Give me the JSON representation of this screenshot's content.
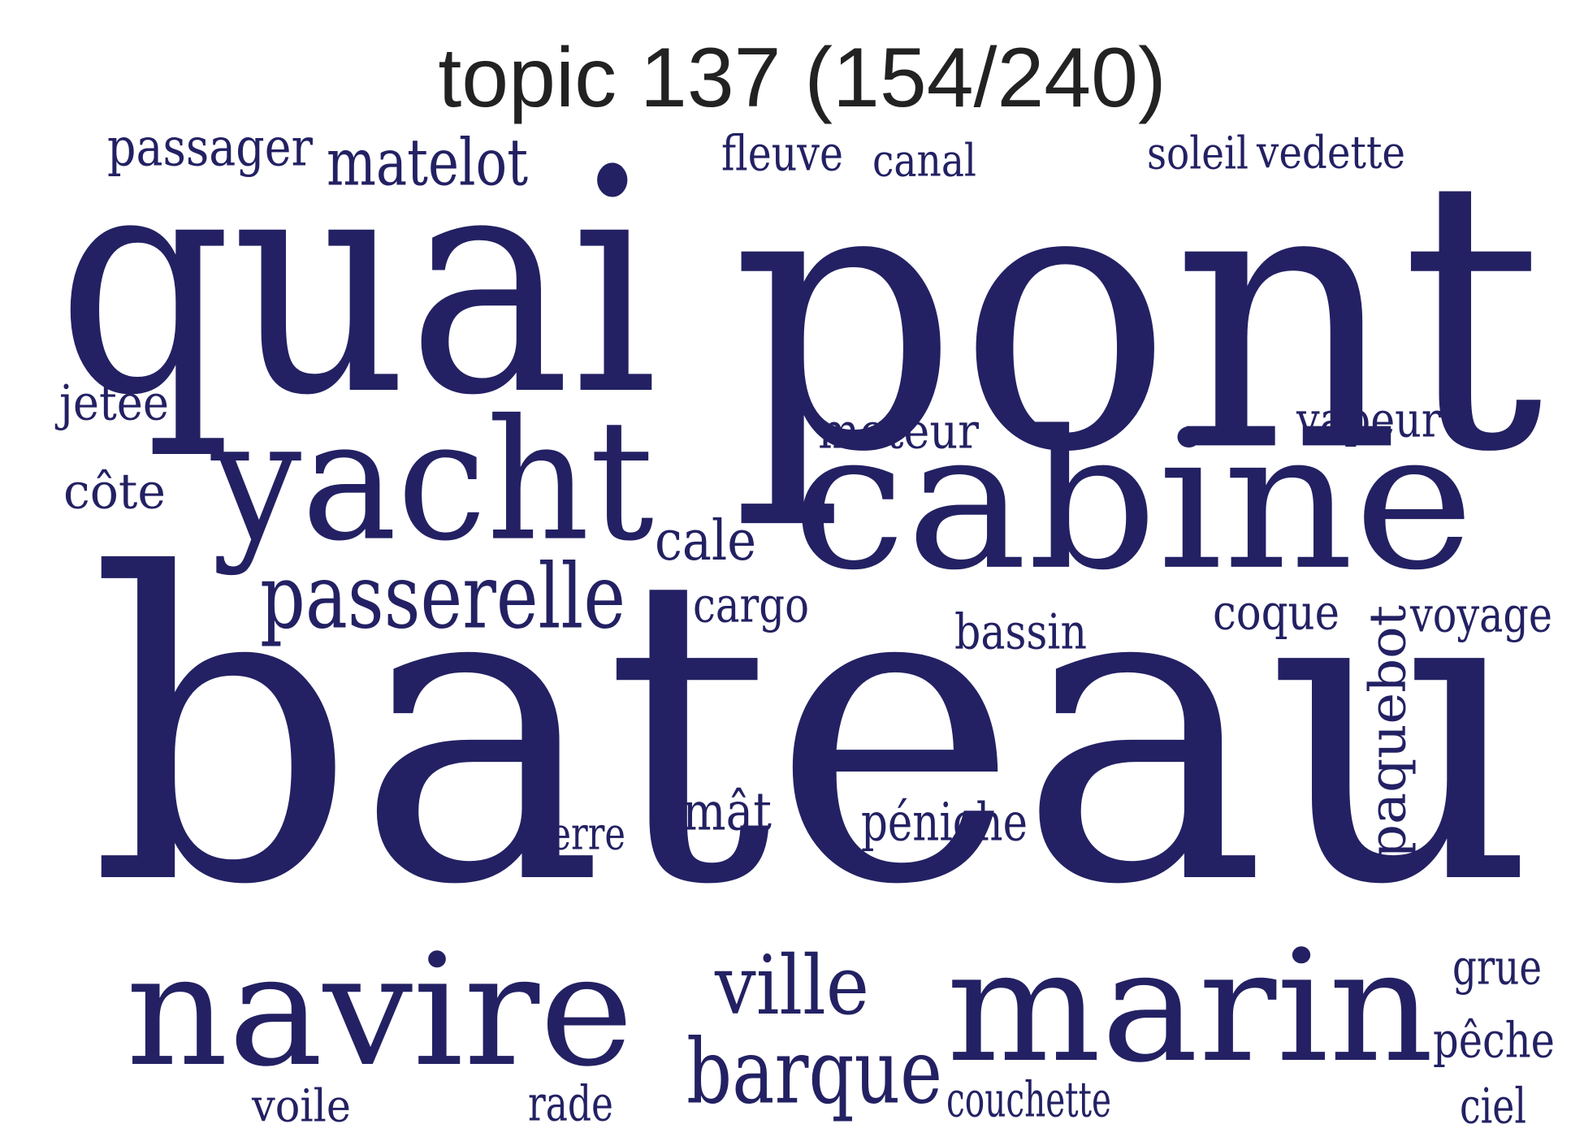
{
  "title": "topic 137 (154/240)",
  "word_color": "#232163",
  "words": [
    {
      "text": "bateau"
    },
    {
      "text": "pont"
    },
    {
      "text": "quai"
    },
    {
      "text": "cabine"
    },
    {
      "text": "marin"
    },
    {
      "text": "navire"
    },
    {
      "text": "yacht"
    },
    {
      "text": "passerelle"
    },
    {
      "text": "barque"
    },
    {
      "text": "ville"
    },
    {
      "text": "paquebot",
      "vertical": true
    },
    {
      "text": "matelot"
    },
    {
      "text": "passager"
    },
    {
      "text": "fleuve"
    },
    {
      "text": "canal"
    },
    {
      "text": "soleil"
    },
    {
      "text": "vedette"
    },
    {
      "text": "moteur"
    },
    {
      "text": "vapeur"
    },
    {
      "text": "jetée"
    },
    {
      "text": "côte"
    },
    {
      "text": "cale"
    },
    {
      "text": "cargo"
    },
    {
      "text": "bassin"
    },
    {
      "text": "coque"
    },
    {
      "text": "voyage"
    },
    {
      "text": "péniche"
    },
    {
      "text": "mât"
    },
    {
      "text": "terre"
    },
    {
      "text": "grue"
    },
    {
      "text": "pêche"
    },
    {
      "text": "couchette"
    },
    {
      "text": "voile"
    },
    {
      "text": "rade"
    },
    {
      "text": "ciel"
    }
  ]
}
